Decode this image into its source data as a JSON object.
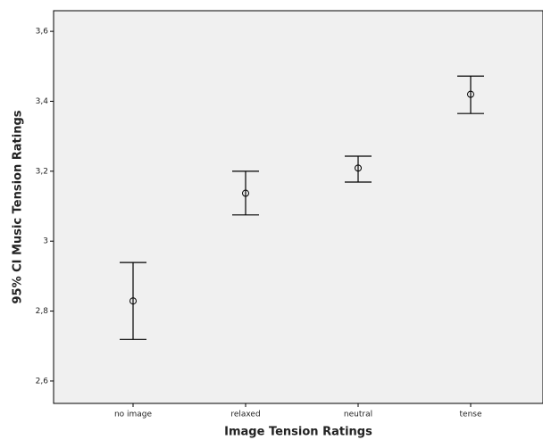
{
  "chart_data": {
    "type": "errorbar",
    "x_label": "Image Tension Ratings",
    "y_label": "95% CI Music Tension Ratings",
    "categories": [
      "no image",
      "relaxed",
      "neutral",
      "tense"
    ],
    "values": [
      2.829,
      3.137,
      3.209,
      3.42
    ],
    "low": [
      2.719,
      3.075,
      3.169,
      3.365
    ],
    "high": [
      2.939,
      3.2,
      3.243,
      3.472
    ],
    "color": "#000000",
    "ylim": [
      2.536,
      3.659
    ],
    "yticks": [
      {
        "value": 2.6,
        "label": "2,6"
      },
      {
        "value": 2.8,
        "label": "2,8"
      },
      3,
      {
        "value": 3.2,
        "label": "3,2"
      },
      {
        "value": 3.4,
        "label": "3,4"
      },
      {
        "value": 3.6,
        "label": "3,6"
      }
    ]
  }
}
